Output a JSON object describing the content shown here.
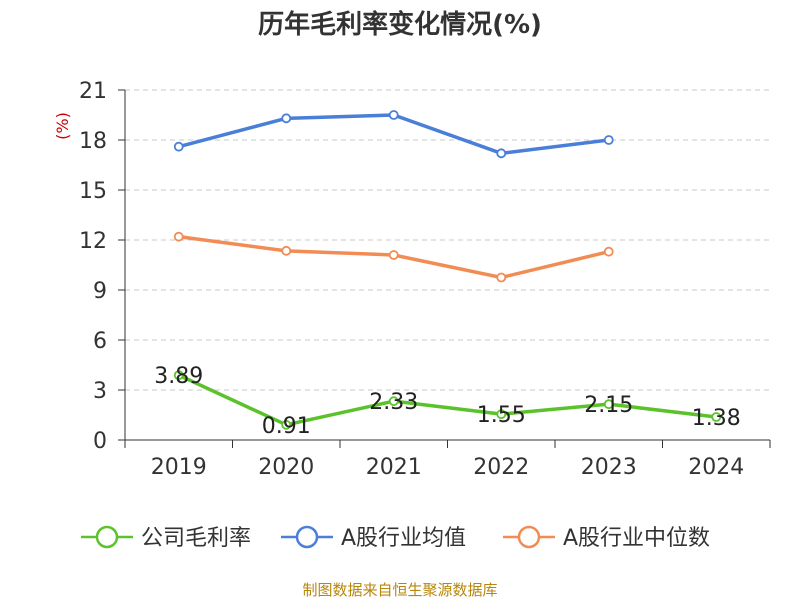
{
  "chart_data": {
    "type": "line",
    "title": "历年毛利率变化情况(%)",
    "ylabel": "(%)",
    "ylim": [
      0,
      21
    ],
    "yticks": [
      0,
      3,
      6,
      9,
      12,
      15,
      18,
      21
    ],
    "categories": [
      "2019",
      "2020",
      "2021",
      "2022",
      "2023",
      "2024"
    ],
    "grid": true,
    "legend_position": "bottom",
    "series": [
      {
        "name": "公司毛利率",
        "color": "#5cc22c",
        "values": [
          3.89,
          0.91,
          2.33,
          1.55,
          2.15,
          1.38
        ],
        "labels": [
          "3.89",
          "0.91",
          "2.33",
          "1.55",
          "2.15",
          "1.38"
        ],
        "show_labels": true
      },
      {
        "name": "A股行业均值",
        "color": "#4a7fd9",
        "values": [
          17.6,
          19.3,
          19.5,
          17.2,
          18.0,
          null
        ],
        "show_labels": false
      },
      {
        "name": "A股行业中位数",
        "color": "#f28c55",
        "values": [
          12.2,
          11.35,
          11.1,
          9.75,
          11.3,
          null
        ],
        "show_labels": false
      }
    ]
  },
  "source": "制图数据来自恒生聚源数据库"
}
